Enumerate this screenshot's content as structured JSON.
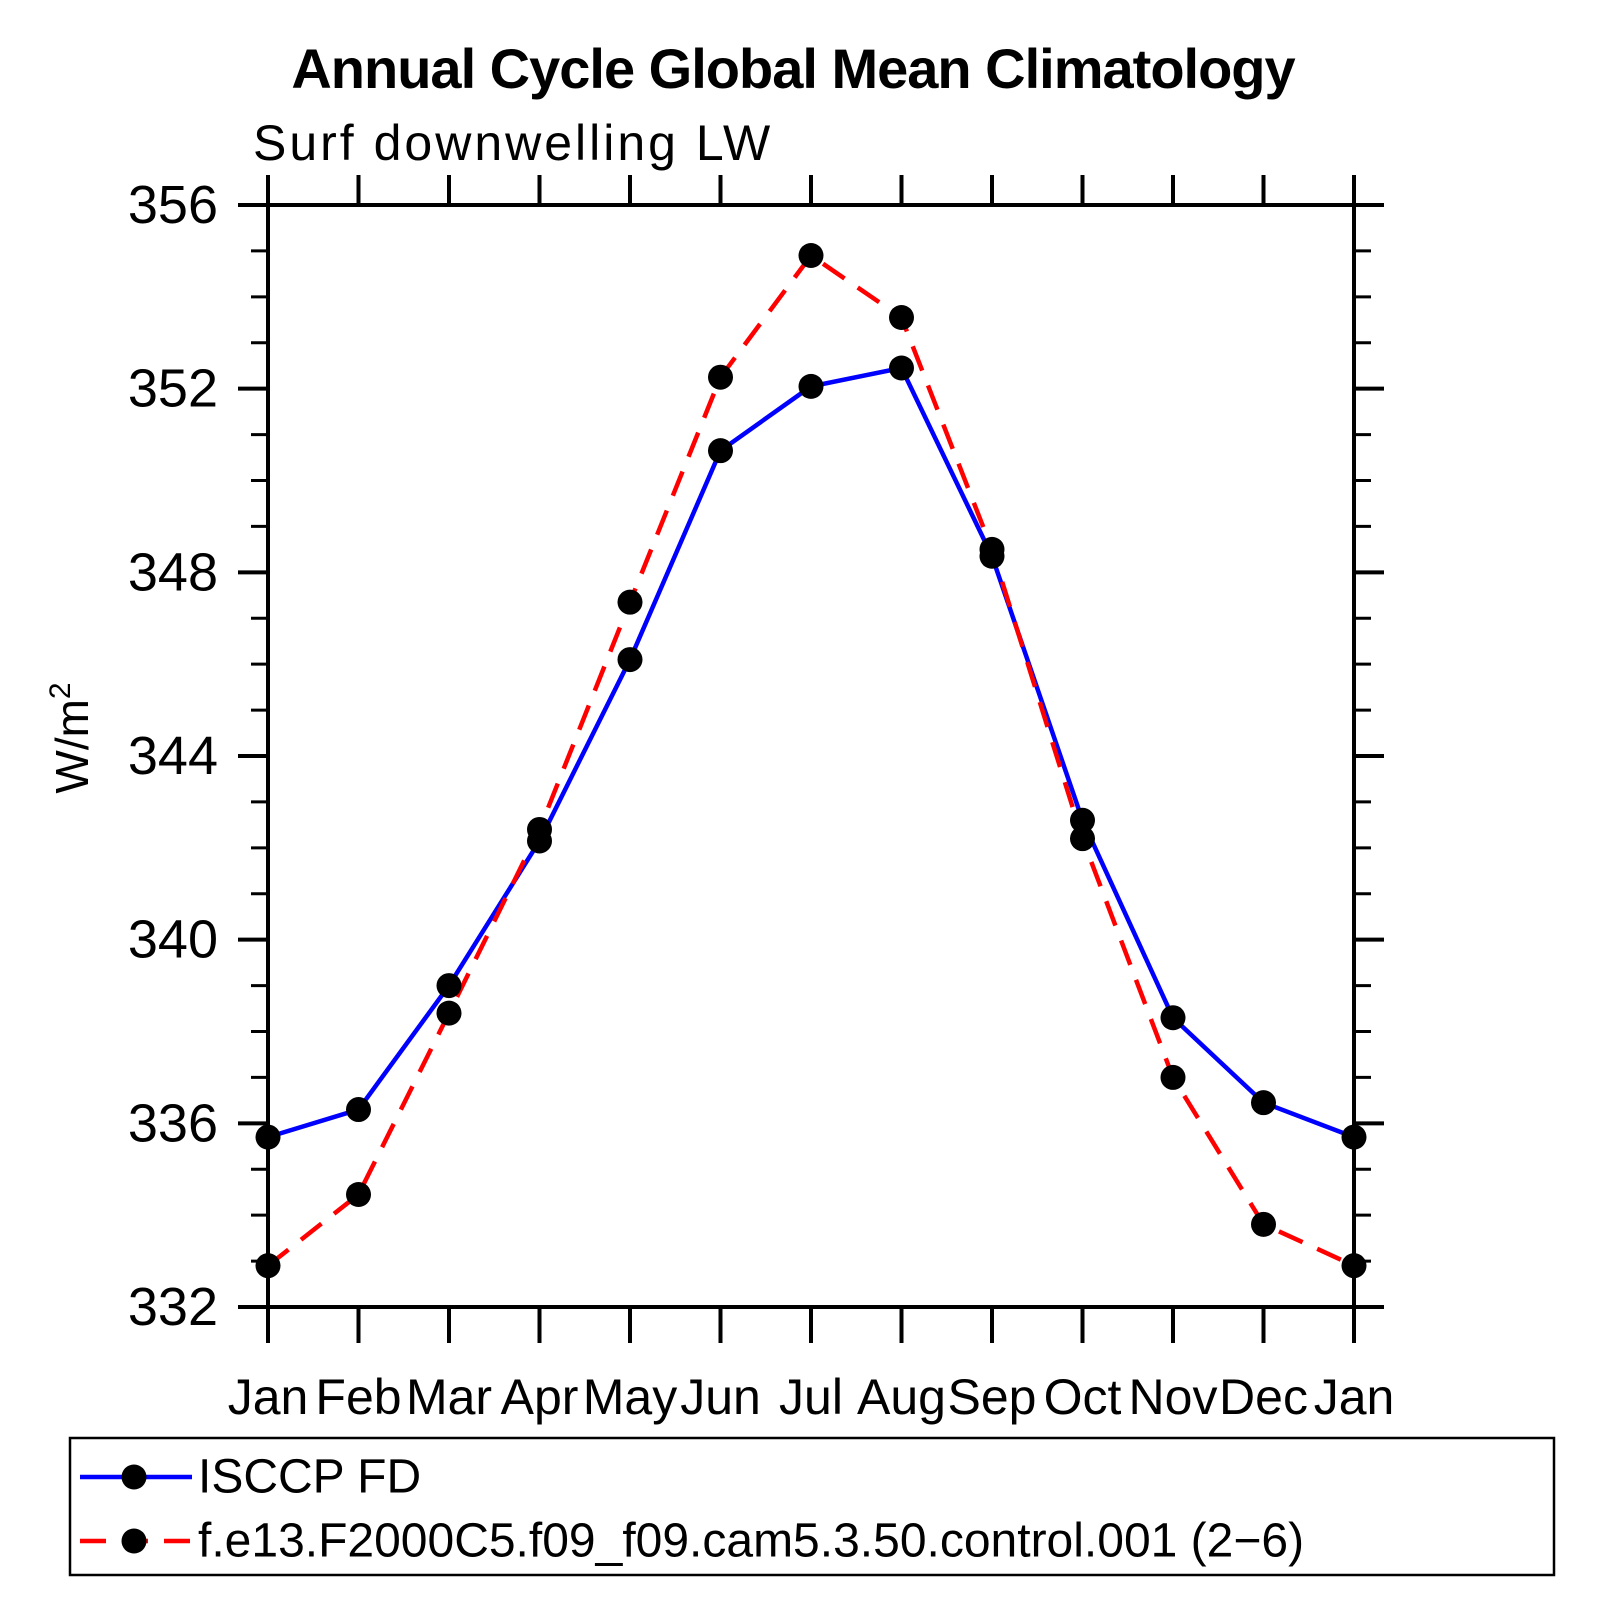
{
  "title": "Annual Cycle Global Mean Climatology",
  "subtitle": "Surf downwelling LW",
  "ylabel_base": "W/m",
  "ylabel_sup": "2",
  "legend": {
    "position": "bottom",
    "items": [
      {
        "label": "ISCCP FD",
        "line_style": "solid",
        "line_color": "#0000ff",
        "marker": "black-dot"
      },
      {
        "label": "f.e13.F2000C5.f09_f09.cam5.3.50.control.001 (2−6)",
        "line_style": "dashed",
        "line_color": "#ff0000",
        "marker": "black-dot"
      }
    ]
  },
  "colors": {
    "axis": "#000000",
    "text": "#000000",
    "marker": "#000000",
    "series_obs": "#0000ff",
    "series_model": "#ff0000",
    "background": "#ffffff"
  },
  "chart_data": {
    "type": "line",
    "title": "Annual Cycle Global Mean Climatology",
    "subtitle": "Surf downwelling LW",
    "xlabel": "",
    "ylabel": "W/m²",
    "x": [
      "Jan",
      "Feb",
      "Mar",
      "Apr",
      "May",
      "Jun",
      "Jul",
      "Aug",
      "Sep",
      "Oct",
      "Nov",
      "Dec",
      "Jan"
    ],
    "series": [
      {
        "name": "ISCCP FD",
        "style": "solid",
        "color": "#0000ff",
        "marker": "black-dot",
        "values": [
          335.7,
          336.3,
          339.0,
          342.15,
          346.1,
          350.65,
          352.05,
          352.45,
          348.35,
          342.6,
          338.3,
          336.45,
          335.7
        ]
      },
      {
        "name": "f.e13.F2000C5.f09_f09.cam5.3.50.control.001 (2−6)",
        "style": "dashed",
        "color": "#ff0000",
        "marker": "black-dot",
        "values": [
          332.9,
          334.45,
          338.4,
          342.4,
          347.35,
          352.25,
          354.9,
          353.55,
          348.5,
          342.2,
          337.0,
          333.8,
          332.9
        ]
      }
    ],
    "ylim": [
      332,
      356
    ],
    "ytick_major_step": 4,
    "ytick_minor_step": 1,
    "ytick_labels": [
      "332",
      "336",
      "340",
      "344",
      "348",
      "352",
      "356"
    ],
    "grid": false,
    "axis_ticks": "outward-mirrored",
    "legend_position": "bottom"
  }
}
